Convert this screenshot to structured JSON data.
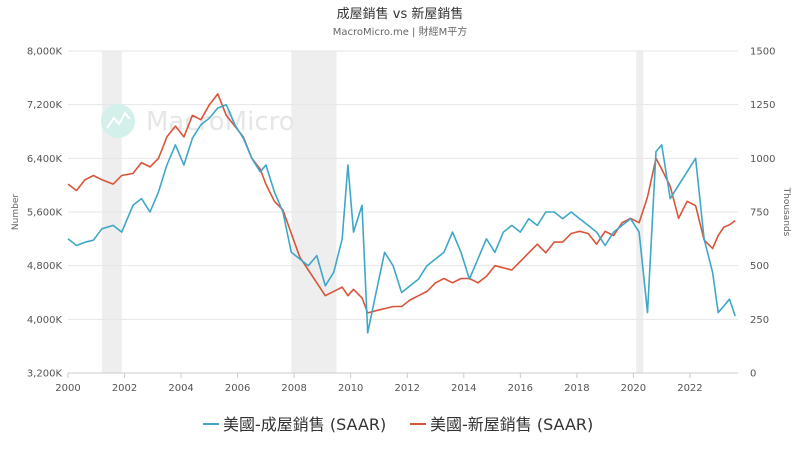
{
  "colors": {
    "existing": "#3fa7c8",
    "new": "#d9553a",
    "grid": "#e6e6e6",
    "recession": "#eeeeee",
    "watermark_icon": "#bfe9e1"
  },
  "watermark": {
    "text": "MacroMicro",
    "icon": "macromicro-logo-icon"
  },
  "chart_data": {
    "type": "line",
    "title": "成屋銷售 vs 新屋銷售",
    "subtitle": "MacroMicro.me | 財經M平方",
    "x_range": [
      2000,
      2023.7
    ],
    "x_ticks": [
      2000,
      2002,
      2004,
      2006,
      2008,
      2010,
      2012,
      2014,
      2016,
      2018,
      2020,
      2022
    ],
    "left_axis": {
      "label": "Number",
      "range": [
        3200,
        8000
      ],
      "ticks": [
        3200,
        4000,
        4800,
        5600,
        6400,
        7200,
        8000
      ],
      "tick_labels": [
        "3,200K",
        "4,000K",
        "4,800K",
        "5,600K",
        "6,400K",
        "7,200K",
        "8,000K"
      ]
    },
    "right_axis": {
      "label": "Thousands",
      "range": [
        0,
        1500
      ],
      "ticks": [
        0,
        250,
        500,
        750,
        1000,
        1250,
        1500
      ],
      "tick_labels": [
        "0",
        "250",
        "500",
        "750",
        "1000",
        "1250",
        "1500"
      ]
    },
    "recession_bands": [
      [
        2001.2,
        2001.9
      ],
      [
        2007.9,
        2009.5
      ],
      [
        2020.1,
        2020.35
      ]
    ],
    "grid": true,
    "legend_position": "bottom",
    "series": [
      {
        "name": "美國-成屋銷售 (SAAR)",
        "axis": "left",
        "unit": "K",
        "points": [
          [
            2000.0,
            5200
          ],
          [
            2000.3,
            5100
          ],
          [
            2000.6,
            5150
          ],
          [
            2000.9,
            5180
          ],
          [
            2001.2,
            5350
          ],
          [
            2001.6,
            5400
          ],
          [
            2001.9,
            5300
          ],
          [
            2002.3,
            5700
          ],
          [
            2002.6,
            5800
          ],
          [
            2002.9,
            5600
          ],
          [
            2003.2,
            5900
          ],
          [
            2003.5,
            6300
          ],
          [
            2003.8,
            6600
          ],
          [
            2004.1,
            6300
          ],
          [
            2004.4,
            6700
          ],
          [
            2004.7,
            6900
          ],
          [
            2005.0,
            7000
          ],
          [
            2005.3,
            7150
          ],
          [
            2005.6,
            7200
          ],
          [
            2005.9,
            6900
          ],
          [
            2006.2,
            6700
          ],
          [
            2006.5,
            6400
          ],
          [
            2006.8,
            6200
          ],
          [
            2007.0,
            6300
          ],
          [
            2007.3,
            5900
          ],
          [
            2007.6,
            5600
          ],
          [
            2007.9,
            5000
          ],
          [
            2008.2,
            4900
          ],
          [
            2008.5,
            4800
          ],
          [
            2008.8,
            4950
          ],
          [
            2009.1,
            4500
          ],
          [
            2009.4,
            4700
          ],
          [
            2009.7,
            5200
          ],
          [
            2009.9,
            6300
          ],
          [
            2010.1,
            5300
          ],
          [
            2010.4,
            5700
          ],
          [
            2010.6,
            3800
          ],
          [
            2010.9,
            4400
          ],
          [
            2011.2,
            5000
          ],
          [
            2011.5,
            4800
          ],
          [
            2011.8,
            4400
          ],
          [
            2012.1,
            4500
          ],
          [
            2012.4,
            4600
          ],
          [
            2012.7,
            4800
          ],
          [
            2013.0,
            4900
          ],
          [
            2013.3,
            5000
          ],
          [
            2013.6,
            5300
          ],
          [
            2013.9,
            5000
          ],
          [
            2014.2,
            4600
          ],
          [
            2014.5,
            4900
          ],
          [
            2014.8,
            5200
          ],
          [
            2015.1,
            5000
          ],
          [
            2015.4,
            5300
          ],
          [
            2015.7,
            5400
          ],
          [
            2016.0,
            5300
          ],
          [
            2016.3,
            5500
          ],
          [
            2016.6,
            5400
          ],
          [
            2016.9,
            5600
          ],
          [
            2017.2,
            5600
          ],
          [
            2017.5,
            5500
          ],
          [
            2017.8,
            5600
          ],
          [
            2018.1,
            5500
          ],
          [
            2018.4,
            5400
          ],
          [
            2018.7,
            5300
          ],
          [
            2019.0,
            5100
          ],
          [
            2019.3,
            5300
          ],
          [
            2019.6,
            5400
          ],
          [
            2019.9,
            5500
          ],
          [
            2020.2,
            5300
          ],
          [
            2020.5,
            4100
          ],
          [
            2020.8,
            6500
          ],
          [
            2021.0,
            6600
          ],
          [
            2021.3,
            5800
          ],
          [
            2021.6,
            6000
          ],
          [
            2021.9,
            6200
          ],
          [
            2022.2,
            6400
          ],
          [
            2022.5,
            5200
          ],
          [
            2022.8,
            4700
          ],
          [
            2023.0,
            4100
          ],
          [
            2023.2,
            4200
          ],
          [
            2023.4,
            4300
          ],
          [
            2023.6,
            4050
          ]
        ]
      },
      {
        "name": "美國-新屋銷售 (SAAR)",
        "axis": "right",
        "unit": "Thousands",
        "points": [
          [
            2000.0,
            880
          ],
          [
            2000.3,
            850
          ],
          [
            2000.6,
            900
          ],
          [
            2000.9,
            920
          ],
          [
            2001.2,
            900
          ],
          [
            2001.6,
            880
          ],
          [
            2001.9,
            920
          ],
          [
            2002.3,
            930
          ],
          [
            2002.6,
            980
          ],
          [
            2002.9,
            960
          ],
          [
            2003.2,
            1000
          ],
          [
            2003.5,
            1100
          ],
          [
            2003.8,
            1150
          ],
          [
            2004.1,
            1100
          ],
          [
            2004.4,
            1200
          ],
          [
            2004.7,
            1180
          ],
          [
            2005.0,
            1250
          ],
          [
            2005.3,
            1300
          ],
          [
            2005.6,
            1200
          ],
          [
            2005.9,
            1150
          ],
          [
            2006.2,
            1100
          ],
          [
            2006.5,
            1000
          ],
          [
            2006.8,
            950
          ],
          [
            2007.0,
            880
          ],
          [
            2007.3,
            800
          ],
          [
            2007.6,
            760
          ],
          [
            2007.9,
            650
          ],
          [
            2008.2,
            540
          ],
          [
            2008.5,
            480
          ],
          [
            2008.8,
            420
          ],
          [
            2009.1,
            360
          ],
          [
            2009.4,
            380
          ],
          [
            2009.7,
            400
          ],
          [
            2009.9,
            360
          ],
          [
            2010.1,
            390
          ],
          [
            2010.4,
            350
          ],
          [
            2010.6,
            280
          ],
          [
            2010.9,
            290
          ],
          [
            2011.2,
            300
          ],
          [
            2011.5,
            310
          ],
          [
            2011.8,
            310
          ],
          [
            2012.1,
            340
          ],
          [
            2012.4,
            360
          ],
          [
            2012.7,
            380
          ],
          [
            2013.0,
            420
          ],
          [
            2013.3,
            440
          ],
          [
            2013.6,
            420
          ],
          [
            2013.9,
            440
          ],
          [
            2014.2,
            440
          ],
          [
            2014.5,
            420
          ],
          [
            2014.8,
            450
          ],
          [
            2015.1,
            500
          ],
          [
            2015.4,
            490
          ],
          [
            2015.7,
            480
          ],
          [
            2016.0,
            520
          ],
          [
            2016.3,
            560
          ],
          [
            2016.6,
            600
          ],
          [
            2016.9,
            560
          ],
          [
            2017.2,
            610
          ],
          [
            2017.5,
            610
          ],
          [
            2017.8,
            650
          ],
          [
            2018.1,
            660
          ],
          [
            2018.4,
            650
          ],
          [
            2018.7,
            600
          ],
          [
            2019.0,
            660
          ],
          [
            2019.3,
            640
          ],
          [
            2019.6,
            700
          ],
          [
            2019.9,
            720
          ],
          [
            2020.2,
            700
          ],
          [
            2020.5,
            820
          ],
          [
            2020.8,
            1000
          ],
          [
            2021.0,
            950
          ],
          [
            2021.3,
            870
          ],
          [
            2021.6,
            720
          ],
          [
            2021.9,
            800
          ],
          [
            2022.2,
            780
          ],
          [
            2022.5,
            620
          ],
          [
            2022.8,
            580
          ],
          [
            2023.0,
            640
          ],
          [
            2023.2,
            680
          ],
          [
            2023.4,
            690
          ],
          [
            2023.6,
            710
          ]
        ]
      }
    ]
  }
}
